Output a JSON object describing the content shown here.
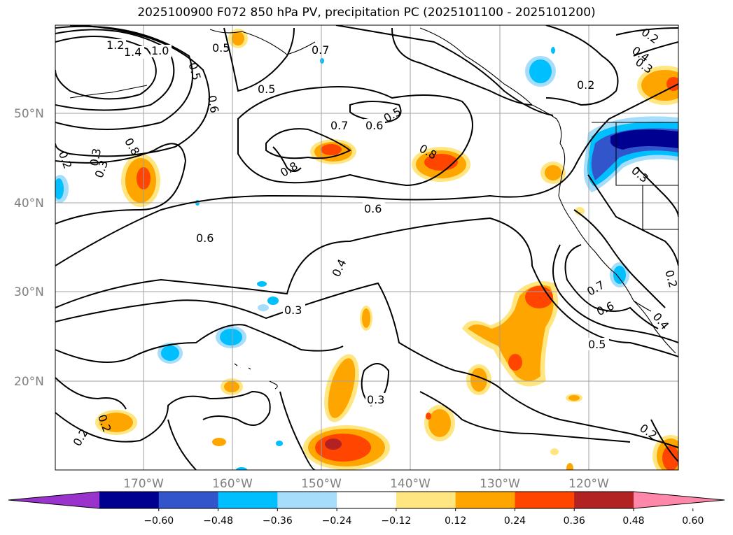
{
  "title": "2025100900 F072 850 hPa PV, precipitation PC (2025101100 - 2025101200)",
  "map": {
    "lat_ticks": [
      "50°N",
      "40°N",
      "30°N",
      "20°N"
    ],
    "lon_ticks": [
      "170°W",
      "160°W",
      "150°W",
      "140°W",
      "130°W",
      "120°W"
    ],
    "pv_contour_labels": [
      "1.2",
      "1.4",
      "1.0",
      "0.5",
      "0.7",
      "0.6",
      "0.5",
      "0.3",
      "0.2",
      "0.5",
      "0.7",
      "0.6",
      "0.5",
      "0.8",
      "0.8",
      "0.8",
      "0.6",
      "0.6",
      "0.4",
      "0.3",
      "0.3",
      "0.2",
      "0.3",
      "0.2",
      "0.7",
      "0.6",
      "0.5",
      "0.2",
      "0.4",
      "0.2",
      "0.2",
      "0.3",
      "0.4",
      "0.3",
      "0.2"
    ]
  },
  "colorbar": {
    "levels": [
      "−0.60",
      "−0.48",
      "−0.36",
      "−0.24",
      "−0.12",
      "0.12",
      "0.24",
      "0.36",
      "0.48",
      "0.60"
    ],
    "colors": [
      "#9933cc",
      "#000090",
      "#3355cc",
      "#00bfff",
      "#a6ddfa",
      "#ffffff",
      "#ffe680",
      "#ffa500",
      "#ff4500",
      "#b22222",
      "#ff88aa"
    ]
  }
}
